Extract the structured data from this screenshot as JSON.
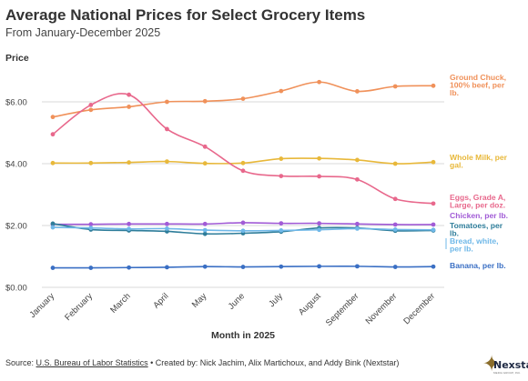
{
  "header": {
    "title": "Average National Prices for Select Grocery Items",
    "subtitle": "From January-December 2025"
  },
  "footer": {
    "source_label": "Source:",
    "source_link": "U.S. Bureau of Labor Statistics",
    "credits": " • Created by: Nick Jachim, Alix Martichoux, and Addy Bink (Nextstar)"
  },
  "logo": {
    "icon": "star-icon",
    "text": "Nexstar",
    "tagline": "MEDIA GROUP, INC."
  },
  "chart_data": {
    "type": "line",
    "title": "Average National Prices for Select Grocery Items",
    "subtitle": "From January-December 2025",
    "xlabel": "Month in 2025",
    "ylabel": "Price",
    "ylim": [
      0,
      7
    ],
    "yticks": [
      0,
      2,
      4,
      6
    ],
    "ytick_labels": [
      "$0.00",
      "$2.00",
      "$4.00",
      "$6.00"
    ],
    "grid": true,
    "legend": "end-of-line labels",
    "categories": [
      "January",
      "February",
      "March",
      "April",
      "May",
      "June",
      "July",
      "August",
      "September",
      "November",
      "December"
    ],
    "series": [
      {
        "name": "Ground Chuck, 100% beef, per lb.",
        "color": "#f0915a",
        "smooth": true,
        "values": [
          5.51,
          5.74,
          5.84,
          6.0,
          6.02,
          6.1,
          6.35,
          6.64,
          6.34,
          6.5,
          6.52
        ]
      },
      {
        "name": "Whole Milk, per gal.",
        "color": "#e8b83a",
        "smooth": true,
        "values": [
          4.02,
          4.02,
          4.04,
          4.07,
          4.01,
          4.02,
          4.16,
          4.17,
          4.12,
          4.0,
          4.05
        ]
      },
      {
        "name": "Eggs, Grade A, Large, per doz.",
        "color": "#e8688c",
        "smooth": true,
        "values": [
          4.95,
          5.9,
          6.23,
          5.12,
          4.55,
          3.77,
          3.6,
          3.59,
          3.49,
          2.86,
          2.71
        ]
      },
      {
        "name": "Chicken, per lb.",
        "color": "#a15bd6",
        "smooth": true,
        "values": [
          2.04,
          2.04,
          2.05,
          2.05,
          2.05,
          2.09,
          2.07,
          2.07,
          2.05,
          2.03,
          2.03
        ]
      },
      {
        "name": "Tomatoes, per lb.",
        "color": "#2e7d9a",
        "smooth": true,
        "values": [
          2.06,
          1.87,
          1.84,
          1.81,
          1.73,
          1.75,
          1.8,
          1.92,
          1.92,
          1.83,
          1.84
        ]
      },
      {
        "name": "Bread, white, per lb.",
        "color": "#6fb8e8",
        "smooth": true,
        "values": [
          1.94,
          1.92,
          1.89,
          1.9,
          1.85,
          1.83,
          1.84,
          1.86,
          1.9,
          1.87,
          1.86
        ]
      },
      {
        "name": "Banana, per lb.",
        "color": "#3a6fc4",
        "smooth": true,
        "values": [
          0.63,
          0.63,
          0.64,
          0.65,
          0.67,
          0.66,
          0.67,
          0.68,
          0.68,
          0.66,
          0.67
        ]
      }
    ]
  }
}
